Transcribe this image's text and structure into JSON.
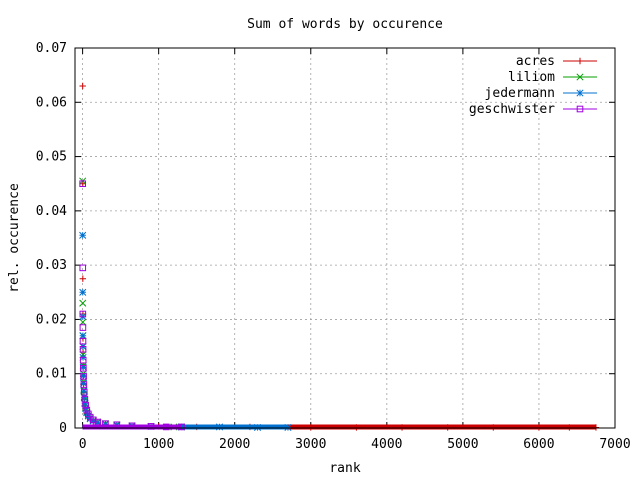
{
  "chart_data": {
    "type": "scatter",
    "title": "Sum of words by occurence",
    "xlabel": "rank",
    "ylabel": "rel. occurence",
    "xlim": [
      -100,
      7000
    ],
    "ylim": [
      0,
      0.07
    ],
    "grid": true,
    "legend_position": "top-right",
    "x_ticks": [
      0,
      1000,
      2000,
      3000,
      4000,
      5000,
      6000,
      7000
    ],
    "y_ticks": [
      0,
      0.01,
      0.02,
      0.03,
      0.04,
      0.05,
      0.06,
      0.07
    ],
    "x_tick_labels": [
      "0",
      "1000",
      "2000",
      "3000",
      "4000",
      "5000",
      "6000",
      "7000"
    ],
    "y_tick_labels": [
      "0",
      "0.01",
      "0.02",
      "0.03",
      "0.04",
      "0.05",
      "0.06",
      "0.07"
    ],
    "series": [
      {
        "name": "acres",
        "color": "#cc0000",
        "marker": "plus",
        "points": [
          [
            1,
            0.063
          ],
          [
            2,
            0.045
          ],
          [
            3,
            0.0275
          ],
          [
            4,
            0.021
          ],
          [
            5,
            0.0165
          ],
          [
            6,
            0.014
          ],
          [
            8,
            0.0115
          ],
          [
            10,
            0.0095
          ],
          [
            13,
            0.008
          ],
          [
            17,
            0.0065
          ],
          [
            22,
            0.0052
          ],
          [
            30,
            0.0042
          ],
          [
            40,
            0.0033
          ],
          [
            55,
            0.0026
          ],
          [
            75,
            0.002
          ],
          [
            100,
            0.0016
          ],
          [
            140,
            0.0012
          ],
          [
            200,
            0.0009
          ],
          [
            300,
            0.0007
          ],
          [
            450,
            0.0005
          ],
          [
            650,
            0.0004
          ],
          [
            1000,
            0.0003
          ],
          [
            1500,
            0.0002
          ],
          [
            2200,
            0.0002
          ],
          [
            3000,
            0.0001
          ],
          [
            3600,
            0.0001
          ],
          [
            4200,
            0.0001
          ],
          [
            4800,
            0.0001
          ],
          [
            5400,
            0.0001
          ],
          [
            6000,
            0.0001
          ],
          [
            6400,
            0.0001
          ],
          [
            6750,
            0.0001
          ]
        ]
      },
      {
        "name": "liliom",
        "color": "#00a000",
        "marker": "cross",
        "points": [
          [
            1,
            0.0455
          ],
          [
            2,
            0.023
          ],
          [
            3,
            0.0195
          ],
          [
            4,
            0.017
          ],
          [
            5,
            0.015
          ],
          [
            6,
            0.0135
          ],
          [
            8,
            0.0115
          ],
          [
            10,
            0.01
          ],
          [
            13,
            0.0085
          ],
          [
            17,
            0.007
          ],
          [
            22,
            0.0058
          ],
          [
            30,
            0.0046
          ],
          [
            40,
            0.0037
          ],
          [
            55,
            0.0029
          ],
          [
            75,
            0.0023
          ],
          [
            100,
            0.0018
          ],
          [
            140,
            0.0014
          ],
          [
            200,
            0.0011
          ],
          [
            300,
            0.0008
          ],
          [
            450,
            0.0006
          ],
          [
            650,
            0.0004
          ],
          [
            900,
            0.0003
          ],
          [
            1200,
            0.0002
          ],
          [
            1300,
            0.0002
          ]
        ]
      },
      {
        "name": "jedermann",
        "color": "#0070d0",
        "marker": "star",
        "points": [
          [
            1,
            0.0355
          ],
          [
            2,
            0.025
          ],
          [
            3,
            0.0205
          ],
          [
            4,
            0.017
          ],
          [
            5,
            0.015
          ],
          [
            6,
            0.013
          ],
          [
            8,
            0.0112
          ],
          [
            10,
            0.0096
          ],
          [
            13,
            0.0082
          ],
          [
            17,
            0.0068
          ],
          [
            22,
            0.0056
          ],
          [
            30,
            0.0045
          ],
          [
            40,
            0.0036
          ],
          [
            55,
            0.0028
          ],
          [
            75,
            0.0022
          ],
          [
            100,
            0.0017
          ],
          [
            140,
            0.0013
          ],
          [
            200,
            0.001
          ],
          [
            300,
            0.0007
          ],
          [
            450,
            0.0005
          ],
          [
            650,
            0.0004
          ],
          [
            900,
            0.0003
          ],
          [
            1300,
            0.0002
          ],
          [
            1800,
            0.0002
          ],
          [
            2300,
            0.0001
          ],
          [
            2700,
            0.0001
          ]
        ]
      },
      {
        "name": "geschwister",
        "color": "#a000e0",
        "marker": "square",
        "points": [
          [
            1,
            0.045
          ],
          [
            2,
            0.0295
          ],
          [
            3,
            0.021
          ],
          [
            4,
            0.0185
          ],
          [
            5,
            0.016
          ],
          [
            6,
            0.0145
          ],
          [
            8,
            0.0125
          ],
          [
            10,
            0.011
          ],
          [
            13,
            0.0095
          ],
          [
            17,
            0.008
          ],
          [
            22,
            0.0066
          ],
          [
            30,
            0.0053
          ],
          [
            40,
            0.0042
          ],
          [
            55,
            0.0033
          ],
          [
            75,
            0.0026
          ],
          [
            100,
            0.002
          ],
          [
            140,
            0.0015
          ],
          [
            200,
            0.0011
          ],
          [
            300,
            0.0008
          ],
          [
            450,
            0.0006
          ],
          [
            650,
            0.0004
          ],
          [
            900,
            0.0003
          ],
          [
            1100,
            0.0002
          ],
          [
            1300,
            0.0002
          ]
        ]
      }
    ]
  }
}
